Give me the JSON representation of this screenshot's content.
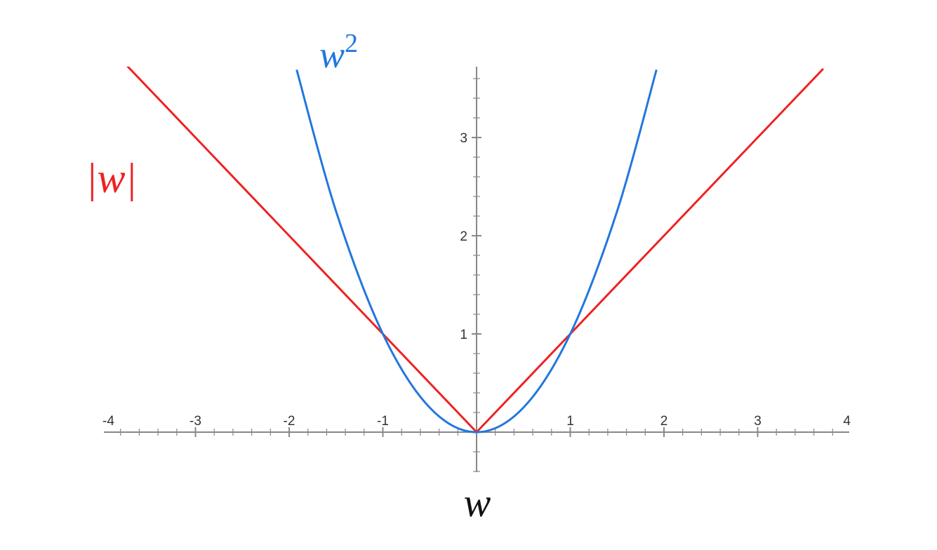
{
  "chart_data": {
    "type": "line",
    "xlabel": "w",
    "xlim": [
      -4,
      4
    ],
    "ylim": [
      -0.4,
      3.7
    ],
    "x_ticks": [
      "-4",
      "-3",
      "-2",
      "-1",
      "1",
      "2",
      "3",
      "4"
    ],
    "x_tick_values": [
      -4,
      -3,
      -2,
      -1,
      1,
      2,
      3,
      4
    ],
    "y_ticks": [
      "1",
      "2",
      "3"
    ],
    "y_tick_values": [
      1,
      2,
      3
    ],
    "grid": false,
    "series": [
      {
        "name": "|w|",
        "label_main": "|w|",
        "color": "#ee2222",
        "x": [
          -3.8,
          -3,
          -2,
          -1,
          0,
          1,
          2,
          3,
          3.7
        ],
        "y": [
          3.8,
          3,
          2,
          1,
          0,
          1,
          2,
          3,
          3.7
        ]
      },
      {
        "name": "w²",
        "label_main": "w",
        "label_sup": "2",
        "color": "#2277dd",
        "x": [
          -1.92,
          -1.5,
          -1,
          -0.5,
          0,
          0.5,
          1,
          1.5,
          1.92
        ],
        "y": [
          3.69,
          2.25,
          1,
          0.25,
          0,
          0.25,
          1,
          2.25,
          3.69
        ]
      }
    ]
  }
}
